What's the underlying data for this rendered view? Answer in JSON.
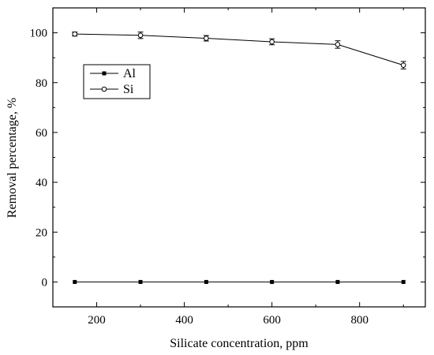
{
  "chart_data": {
    "type": "line",
    "title": "",
    "xlabel": "Silicate concentration, ppm",
    "ylabel": "Removal percentage, %",
    "xlim": [
      100,
      950
    ],
    "ylim": [
      -10,
      110
    ],
    "xticks": [
      200,
      400,
      600,
      800
    ],
    "yticks": [
      0,
      20,
      40,
      60,
      80,
      100
    ],
    "grid": false,
    "legend_position": "upper-left",
    "x": [
      150,
      300,
      450,
      600,
      750,
      900
    ],
    "series": [
      {
        "name": "Al",
        "marker": "filled-square",
        "values": [
          0,
          0,
          0,
          0,
          0,
          0
        ],
        "errors": [
          0,
          0,
          0,
          0,
          0,
          0
        ]
      },
      {
        "name": "Si",
        "marker": "open-circle",
        "values": [
          99.5,
          99.0,
          97.8,
          96.4,
          95.3,
          87.0
        ],
        "errors": [
          0.8,
          1.3,
          1.1,
          1.2,
          1.5,
          1.5
        ]
      }
    ]
  }
}
